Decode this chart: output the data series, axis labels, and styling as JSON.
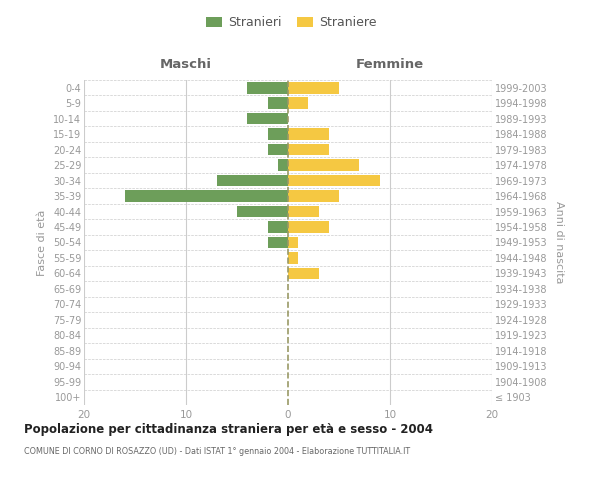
{
  "age_groups": [
    "100+",
    "95-99",
    "90-94",
    "85-89",
    "80-84",
    "75-79",
    "70-74",
    "65-69",
    "60-64",
    "55-59",
    "50-54",
    "45-49",
    "40-44",
    "35-39",
    "30-34",
    "25-29",
    "20-24",
    "15-19",
    "10-14",
    "5-9",
    "0-4"
  ],
  "birth_years": [
    "≤ 1903",
    "1904-1908",
    "1909-1913",
    "1914-1918",
    "1919-1923",
    "1924-1928",
    "1929-1933",
    "1934-1938",
    "1939-1943",
    "1944-1948",
    "1949-1953",
    "1954-1958",
    "1959-1963",
    "1964-1968",
    "1969-1973",
    "1974-1978",
    "1979-1983",
    "1984-1988",
    "1989-1993",
    "1994-1998",
    "1999-2003"
  ],
  "maschi": [
    0,
    0,
    0,
    0,
    0,
    0,
    0,
    0,
    0,
    0,
    2,
    2,
    5,
    16,
    7,
    1,
    2,
    2,
    4,
    2,
    4
  ],
  "femmine": [
    0,
    0,
    0,
    0,
    0,
    0,
    0,
    0,
    3,
    1,
    1,
    4,
    3,
    5,
    9,
    7,
    4,
    4,
    0,
    2,
    5
  ],
  "male_color": "#6d9e5a",
  "female_color": "#f5c842",
  "xlim": 20,
  "title": "Popolazione per cittadinanza straniera per età e sesso - 2004",
  "subtitle": "COMUNE DI CORNO DI ROSAZZO (UD) - Dati ISTAT 1° gennaio 2004 - Elaborazione TUTTITALIA.IT",
  "ylabel_left": "Fasce di età",
  "ylabel_right": "Anni di nascita",
  "legend_male": "Stranieri",
  "legend_female": "Straniere",
  "header_male": "Maschi",
  "header_female": "Femmine",
  "bg_color": "#ffffff",
  "grid_color": "#cccccc",
  "center_line_color": "#999966",
  "text_color": "#999999",
  "header_color": "#666666",
  "title_color": "#222222",
  "subtitle_color": "#666666"
}
